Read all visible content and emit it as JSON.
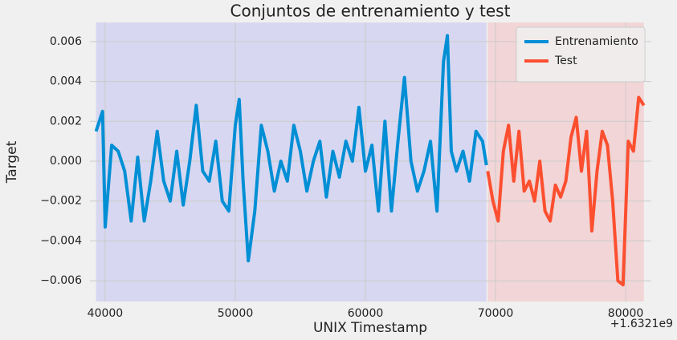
{
  "chart_data": {
    "type": "line",
    "title": "Conjuntos de entrenamiento y test",
    "xlabel": "UNIX Timestamp",
    "ylabel": "Target",
    "x_offset_label": "+1.6321e9",
    "xlim": [
      38830,
      81970
    ],
    "ylim": [
      -0.00704,
      0.00696
    ],
    "xticks": [
      40000,
      50000,
      60000,
      70000,
      80000
    ],
    "yticks": [
      {
        "value": -0.006,
        "label": "−0.006"
      },
      {
        "value": -0.004,
        "label": "−0.004"
      },
      {
        "value": -0.002,
        "label": "−0.002"
      },
      {
        "value": 0,
        "label": "0.000"
      },
      0.002,
      0.004,
      0.006
    ],
    "grid": true,
    "legend": "upper right",
    "series": [
      {
        "name": "Entrenamiento",
        "color": "#008fd5",
        "shade": "#d7d7f1",
        "x": [
          39300,
          39800,
          40000,
          40500,
          41000,
          41500,
          42000,
          42500,
          43000,
          43500,
          44000,
          44500,
          45000,
          45500,
          46000,
          46500,
          47000,
          47500,
          48000,
          48500,
          49000,
          49500,
          50000,
          50300,
          50600,
          51000,
          51500,
          52000,
          52500,
          53000,
          53500,
          54000,
          54500,
          55000,
          55500,
          56000,
          56500,
          57000,
          57500,
          58000,
          58500,
          59000,
          59500,
          60000,
          60500,
          61000,
          61500,
          62000,
          62500,
          63000,
          63500,
          64000,
          64500,
          65000,
          65500,
          66000,
          66300,
          66600,
          67000,
          67500,
          68000,
          68500,
          69000,
          69300
        ],
        "values": [
          0.0015,
          0.0025,
          -0.0033,
          0.0008,
          0.0005,
          -0.0005,
          -0.003,
          0.0002,
          -0.003,
          -0.001,
          0.0015,
          -0.001,
          -0.002,
          0.0005,
          -0.0022,
          0.0,
          0.0028,
          -0.0005,
          -0.001,
          0.001,
          -0.002,
          -0.0025,
          0.0018,
          0.0031,
          -0.001,
          -0.005,
          -0.0025,
          0.0018,
          0.0005,
          -0.0015,
          0.0,
          -0.001,
          0.0018,
          0.0005,
          -0.0015,
          0.0,
          0.001,
          -0.0018,
          0.0005,
          -0.0008,
          0.001,
          0.0,
          0.0027,
          -0.0005,
          0.0008,
          -0.0025,
          0.002,
          -0.0025,
          0.001,
          0.0042,
          0.0,
          -0.0015,
          -0.0005,
          0.001,
          -0.0025,
          0.005,
          0.0063,
          0.0005,
          -0.0005,
          0.0005,
          -0.001,
          0.0015,
          0.001,
          -0.0002
        ]
      },
      {
        "name": "Test",
        "color": "#fc4f30",
        "shade": "#f2d5d6",
        "x": [
          69400,
          69800,
          70200,
          70600,
          71000,
          71400,
          71800,
          72200,
          72600,
          73000,
          73400,
          73800,
          74200,
          74600,
          75000,
          75400,
          75800,
          76200,
          76600,
          77000,
          77400,
          77800,
          78200,
          78600,
          79000,
          79400,
          79800,
          80200,
          80600,
          81000,
          81400
        ],
        "values": [
          -0.0005,
          -0.002,
          -0.003,
          0.0005,
          0.0018,
          -0.001,
          0.0015,
          -0.0015,
          -0.001,
          -0.002,
          0.0,
          -0.0025,
          -0.003,
          -0.0012,
          -0.0018,
          -0.001,
          0.0012,
          0.0022,
          -0.0005,
          0.0015,
          -0.0035,
          -0.0005,
          0.0015,
          0.0008,
          -0.002,
          -0.006,
          -0.0062,
          0.001,
          0.0005,
          0.0032,
          0.0028
        ]
      }
    ]
  }
}
